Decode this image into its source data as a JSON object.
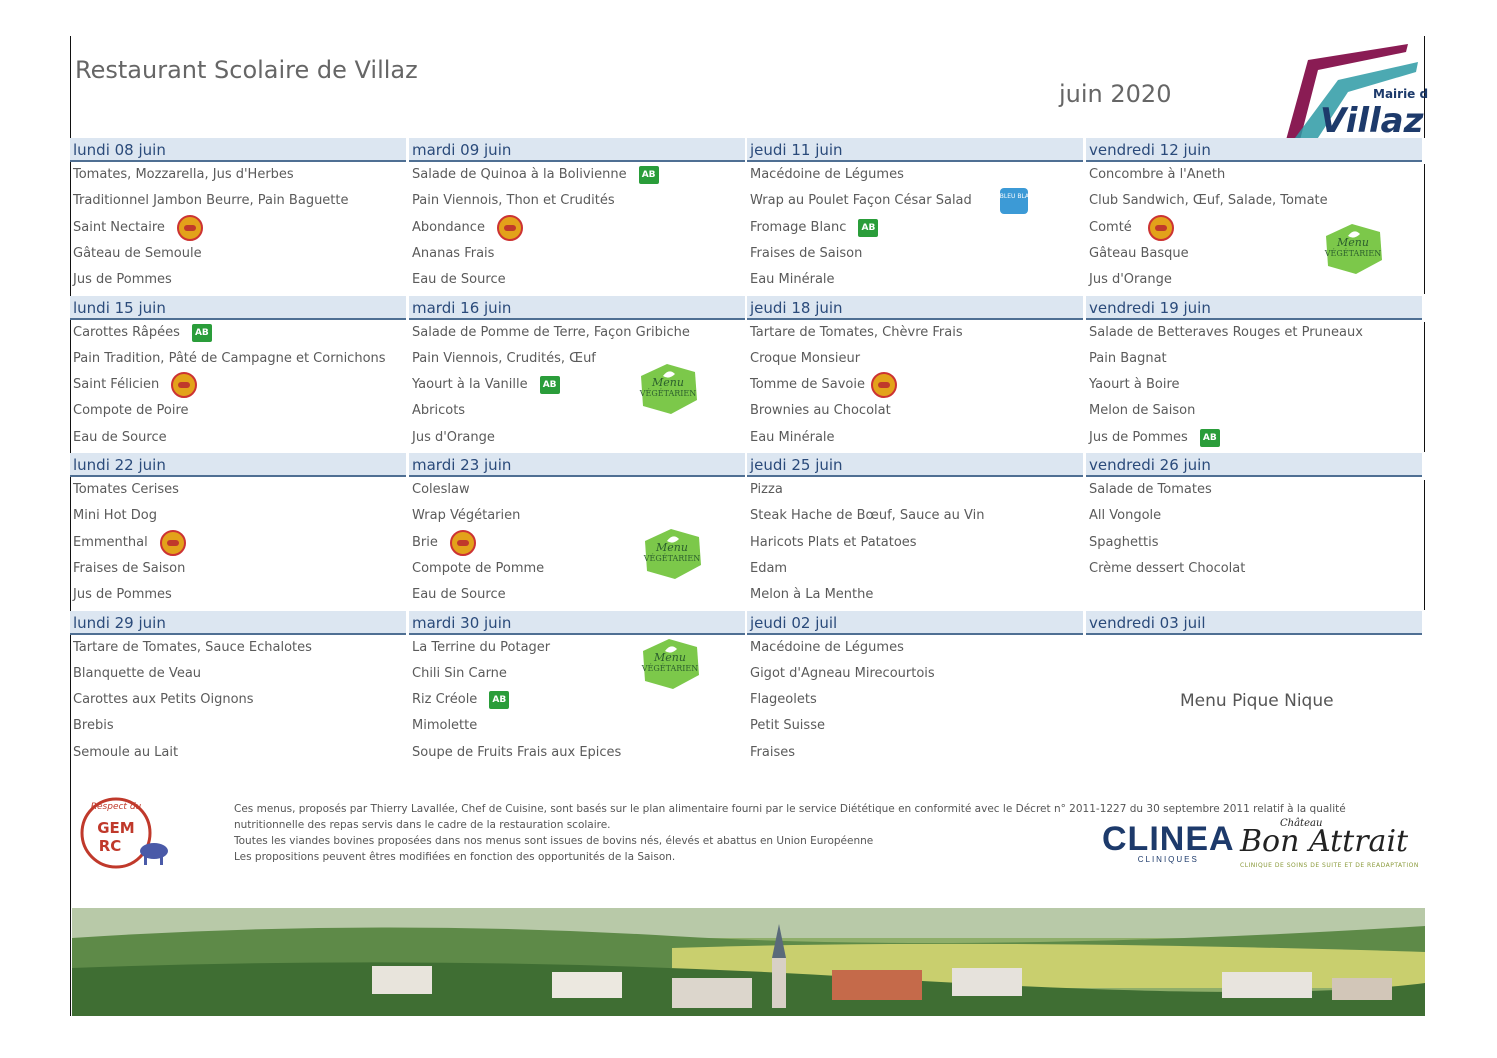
{
  "header": {
    "title": "Restaurant Scolaire de Villaz",
    "month": "juin 2020",
    "logo_top": "Mairie de",
    "logo_main": "Villaz"
  },
  "columns": [
    {
      "weeks": [
        {
          "day": "lundi 08 juin",
          "items": [
            "Tomates, Mozzarella, Jus d'Herbes",
            "Traditionnel Jambon Beurre, Pain Baguette",
            "Saint Nectaire",
            "Gâteau de Semoule",
            "Jus de Pommes"
          ]
        },
        {
          "day": "lundi 15 juin",
          "items": [
            "Carottes Râpées",
            "Pain Tradition, Pâté de Campagne et Cornichons",
            "Saint Félicien",
            "Compote de Poire",
            "Eau de Source"
          ]
        },
        {
          "day": "lundi 22 juin",
          "items": [
            "Tomates Cerises",
            "Mini Hot Dog",
            "Emmenthal",
            "Fraises de Saison",
            "Jus de Pommes"
          ]
        },
        {
          "day": "lundi 29 juin",
          "items": [
            "Tartare de Tomates, Sauce Echalotes",
            "Blanquette de Veau",
            "Carottes aux Petits Oignons",
            "Brebis",
            "Semoule au Lait"
          ]
        }
      ]
    },
    {
      "weeks": [
        {
          "day": "mardi 09 juin",
          "items": [
            "Salade de Quinoa à la Bolivienne",
            "Pain Viennois, Thon et Crudités",
            "Abondance",
            "Ananas Frais",
            "Eau de Source"
          ]
        },
        {
          "day": "mardi 16 juin",
          "items": [
            "Salade de Pomme de Terre, Façon Gribiche",
            "Pain Viennois, Crudités, Œuf",
            "Yaourt à la Vanille",
            "Abricots",
            "Jus d'Orange"
          ]
        },
        {
          "day": "mardi 23 juin",
          "items": [
            "Coleslaw",
            "Wrap Végétarien",
            "Brie",
            "Compote de Pomme",
            "Eau de Source"
          ]
        },
        {
          "day": "mardi 30 juin",
          "items": [
            "La Terrine du Potager",
            "Chili Sin Carne",
            "Riz Créole",
            "Mimolette",
            "Soupe de Fruits Frais aux Epices"
          ]
        }
      ]
    },
    {
      "weeks": [
        {
          "day": "jeudi 11 juin",
          "items": [
            "Macédoine de Légumes",
            "Wrap au Poulet Façon César Salad",
            "Fromage Blanc",
            "Fraises de Saison",
            "Eau Minérale"
          ]
        },
        {
          "day": "jeudi 18 juin",
          "items": [
            "Tartare de Tomates, Chèvre Frais",
            "Croque Monsieur",
            "Tomme de Savoie",
            "Brownies au Chocolat",
            "Eau Minérale"
          ]
        },
        {
          "day": "jeudi 25 juin",
          "items": [
            "Pizza",
            "Steak Hache de Bœuf, Sauce au Vin",
            "Haricots Plats et Patatoes",
            "Edam",
            "Melon à La Menthe"
          ]
        },
        {
          "day": "jeudi 02 juil",
          "items": [
            "Macédoine de Légumes",
            "Gigot d'Agneau Mirecourtois",
            "Flageolets",
            "Petit Suisse",
            "Fraises"
          ]
        }
      ]
    },
    {
      "weeks": [
        {
          "day": "vendredi 12 juin",
          "items": [
            "Concombre à l'Aneth",
            "Club Sandwich, Œuf, Salade, Tomate",
            "Comté",
            "Gâteau Basque",
            "Jus d'Orange"
          ]
        },
        {
          "day": "vendredi 19 juin",
          "items": [
            "Salade de Betteraves Rouges et Pruneaux",
            "Pain Bagnat",
            "Yaourt à Boire",
            "Melon de Saison",
            "Jus de Pommes"
          ]
        },
        {
          "day": "vendredi 26 juin",
          "items": [
            "Salade de Tomates",
            "All Vongole",
            "Spaghettis",
            "Crème dessert Chocolat",
            ""
          ]
        },
        {
          "day": "vendredi 03 juil",
          "items": [
            "",
            "",
            "",
            "",
            ""
          ]
        }
      ]
    }
  ],
  "special": "Menu Pique Nique",
  "badges": {
    "ab": "AB",
    "bleu_blanc": "BLEU BLANC COEUR",
    "veg_line1": "Menu",
    "veg_line2": "VÉGÉTARIEN"
  },
  "footer": {
    "lines": [
      "Ces menus, proposés par Thierry Lavallée, Chef de Cuisine, sont basés sur le plan alimentaire fourni par le service Diététique en conformité avec le Décret n° 2011-1227 du 30 septembre 2011 relatif à la qualité",
      "nutritionnelle des repas servis dans le cadre de la restauration scolaire.",
      "Toutes les viandes bovines proposées dans nos menus sont issues de bovins nés, élevés et abattus en Union Européenne",
      "Les propositions peuvent êtres modifiées en fonction des opportunités de la Saison."
    ],
    "gem_top": "Respect du",
    "gem_l1": "GEM",
    "gem_l2": "RC",
    "clinea": "CLINEA",
    "clinea_sub": "CLINIQUES",
    "bon_small": "Château",
    "bon_main": "Bon Attrait",
    "bon_sub": "CLINIQUE DE SOINS DE SUITE ET DE READAPTATION"
  },
  "colors": {
    "header_bg": "#dce6f1",
    "header_text": "#2a4a7a",
    "ab_green": "#2a9d3a",
    "veg_green": "#7cc84a"
  }
}
